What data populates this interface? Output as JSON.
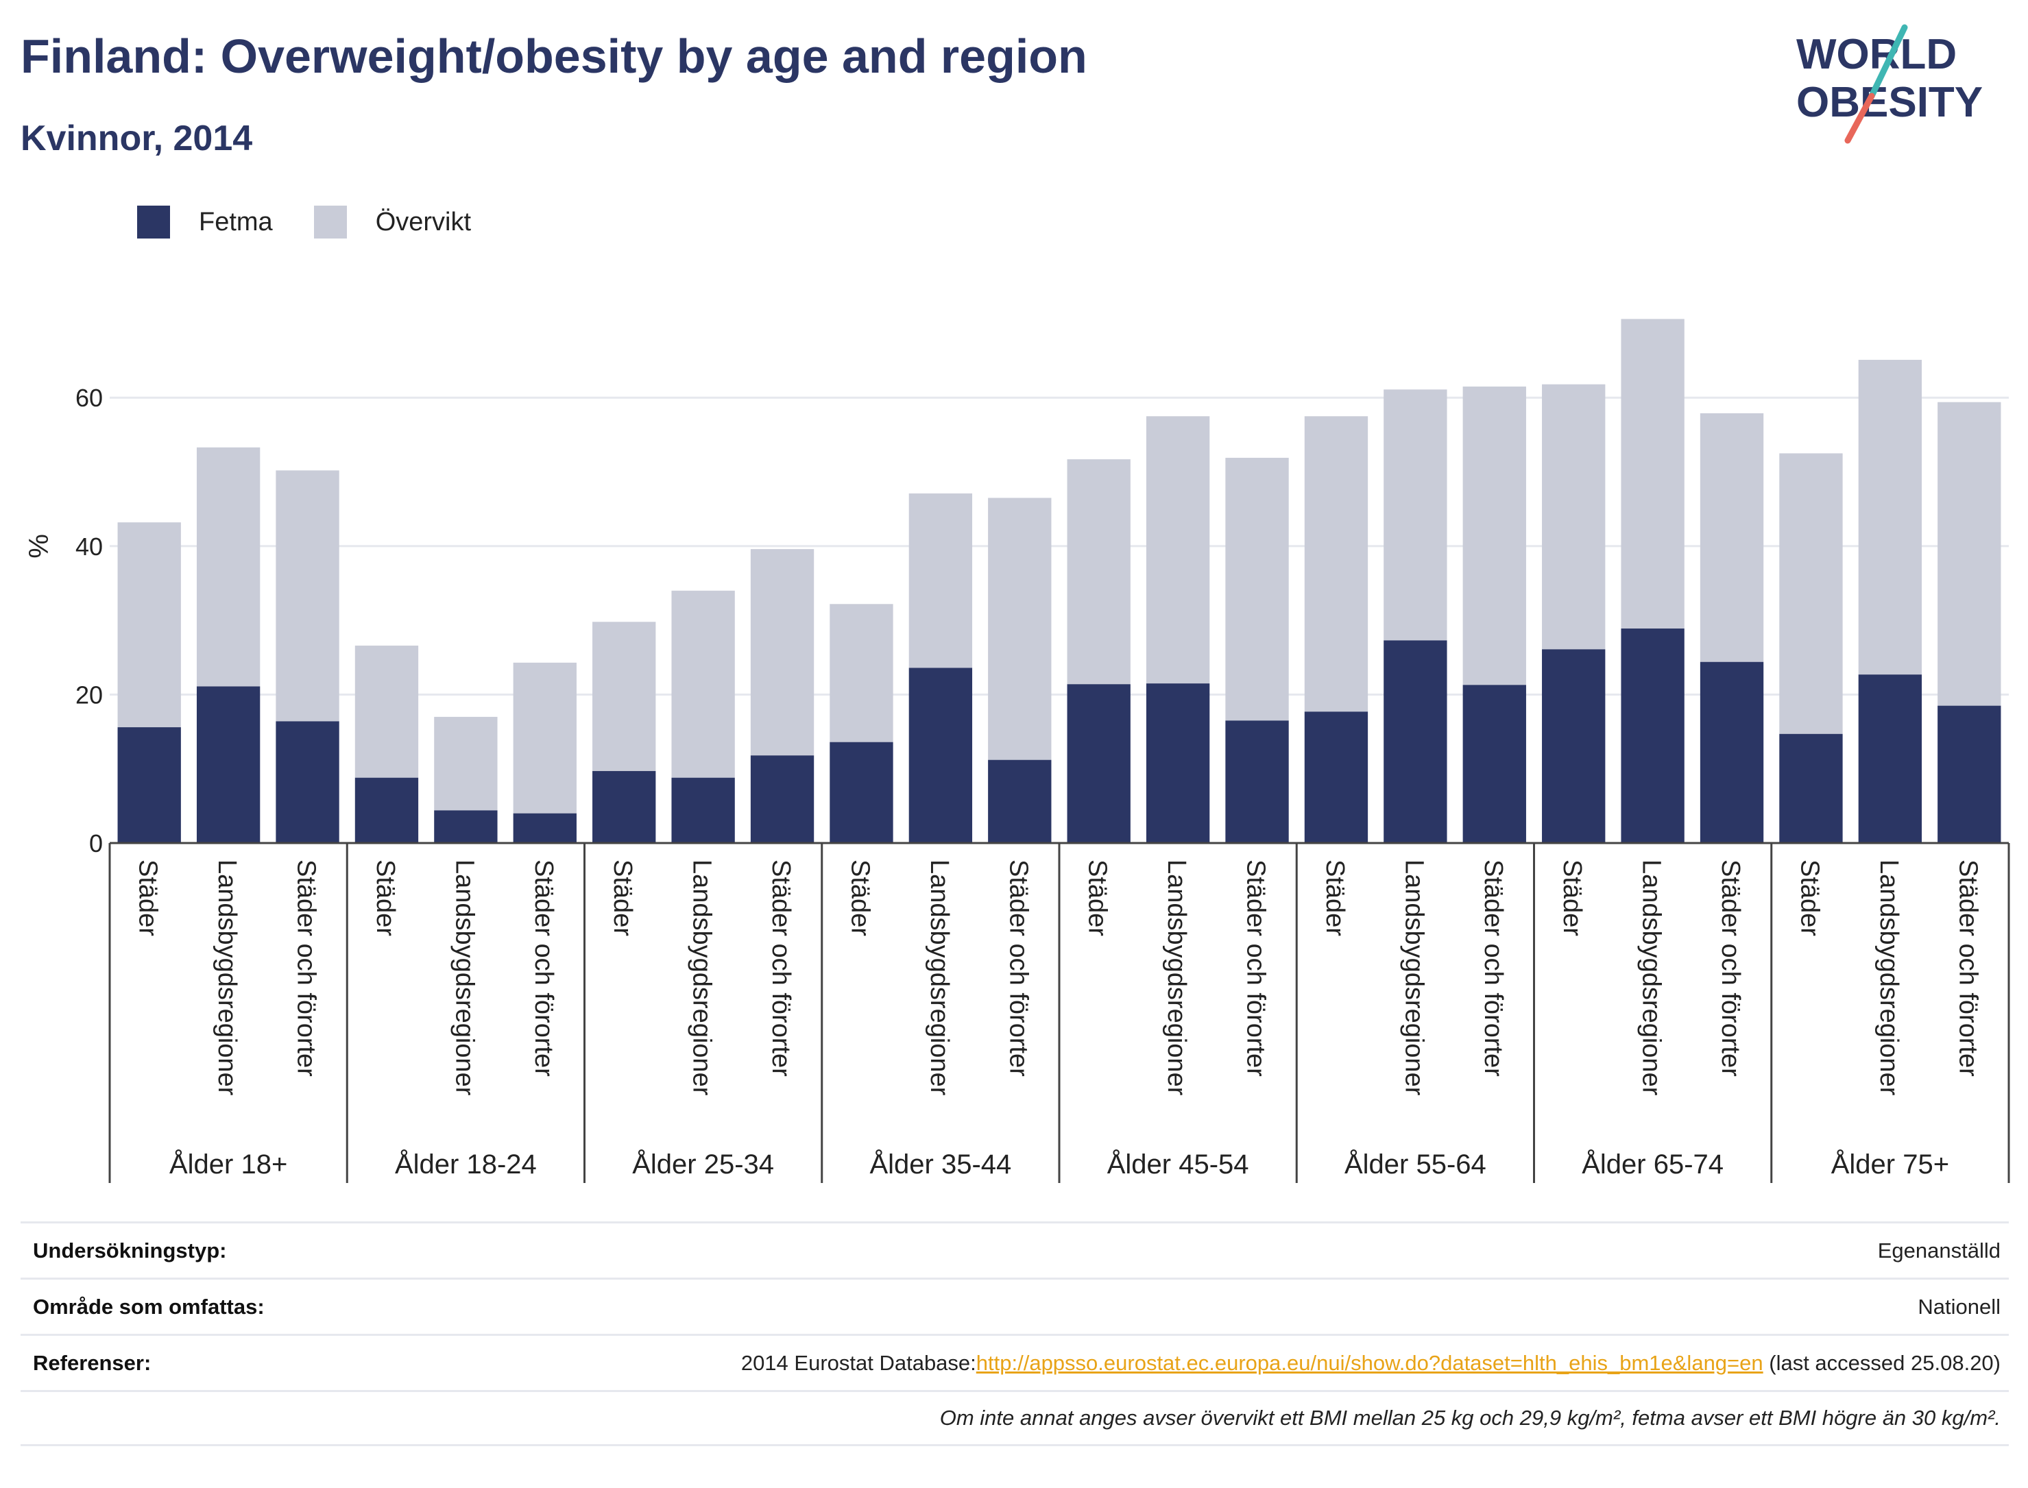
{
  "header": {
    "title": "Finland: Overweight/obesity by age and region",
    "subtitle": "Kvinnor, 2014"
  },
  "logo": {
    "line1": "WORLD",
    "line2": "OBESITY",
    "colors": {
      "text": "#2b3664",
      "slash_top": "#3fb6b3",
      "slash_bottom": "#e8675a"
    }
  },
  "legend": [
    {
      "label": "Fetma",
      "color": "#2b3664"
    },
    {
      "label": "Övervikt",
      "color": "#c9ccd8"
    }
  ],
  "chart_data": {
    "type": "bar",
    "stacked": true,
    "ylabel": "%",
    "ylim": [
      0,
      75
    ],
    "yticks": [
      0,
      20,
      40,
      60
    ],
    "grid": true,
    "legend_position": "top-left",
    "groups": [
      "Ålder 18+",
      "Ålder 18-24",
      "Ålder 25-34",
      "Ålder 35-44",
      "Ålder 45-54",
      "Ålder 55-64",
      "Ålder 65-74",
      "Ålder 75+"
    ],
    "subcategories": [
      "Städer",
      "Landsbygdsregioner",
      "Städer och förorter"
    ],
    "series": [
      {
        "name": "Fetma",
        "color": "#2b3664",
        "values": [
          15.6,
          21.1,
          16.4,
          8.8,
          4.4,
          4.0,
          9.7,
          8.8,
          11.8,
          13.6,
          23.6,
          11.2,
          21.4,
          21.5,
          16.5,
          17.7,
          27.3,
          21.3,
          26.1,
          28.9,
          24.4,
          14.7,
          22.7,
          18.5
        ]
      },
      {
        "name": "Övervikt",
        "color": "#c9ccd8",
        "values": [
          27.6,
          32.2,
          33.8,
          17.8,
          12.6,
          20.3,
          20.1,
          25.2,
          27.8,
          18.6,
          23.5,
          35.3,
          30.3,
          36.0,
          35.4,
          39.8,
          33.8,
          40.2,
          35.7,
          41.7,
          33.5,
          37.8,
          42.4,
          40.9
        ]
      }
    ]
  },
  "info": {
    "rows": [
      {
        "key": "Undersökningstyp:",
        "value": "Egenanställd"
      },
      {
        "key": "Område som omfattas:",
        "value": "Nationell"
      }
    ],
    "ref_key": "Referenser:",
    "ref_prefix": "2014 Eurostat Database:",
    "ref_link": "http://appsso.eurostat.ec.europa.eu/nui/show.do?dataset=hlth_ehis_bm1e&lang=en",
    "ref_suffix": " (last accessed 25.08.20)",
    "note": "Om inte annat anges avser övervikt ett BMI mellan 25 kg och 29,9 kg/m², fetma avser ett BMI högre än 30 kg/m²."
  }
}
